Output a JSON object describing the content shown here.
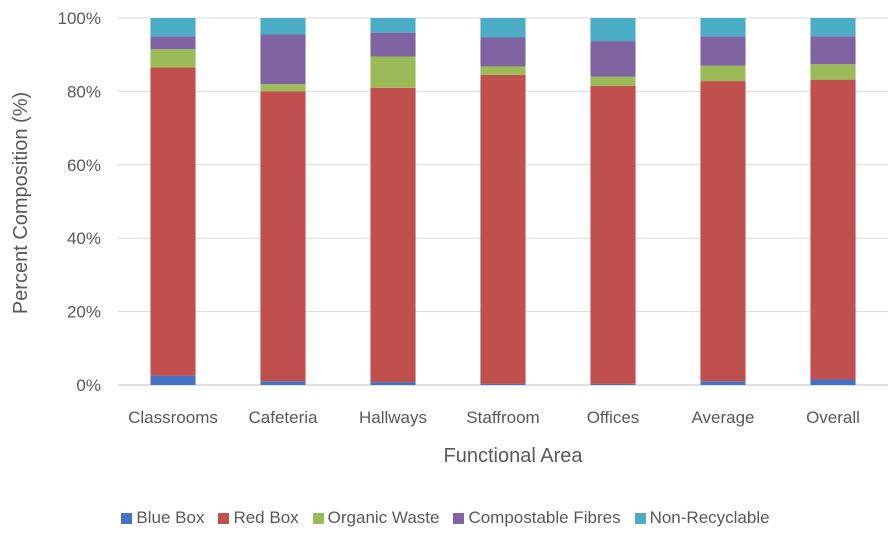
{
  "chart_data": {
    "type": "bar",
    "stacked": true,
    "categories": [
      "Classrooms",
      "Cafeteria",
      "Hallways",
      "Staffroom",
      "Offices",
      "Average",
      "Overall"
    ],
    "series": [
      {
        "name": "Blue Box",
        "color": "#4472C4",
        "values": [
          2.5,
          1.0,
          0.8,
          0.3,
          0.3,
          1.0,
          1.5
        ]
      },
      {
        "name": "Red Box",
        "color": "#C0504D",
        "values": [
          84.0,
          79.0,
          80.2,
          84.2,
          81.2,
          81.8,
          81.7
        ]
      },
      {
        "name": "Organic Waste",
        "color": "#9BBB59",
        "values": [
          5.0,
          2.0,
          8.5,
          2.3,
          2.5,
          4.2,
          4.2
        ]
      },
      {
        "name": "Compostable Fibres",
        "color": "#8064A2",
        "values": [
          3.5,
          13.5,
          6.5,
          8.0,
          9.7,
          8.0,
          7.6
        ]
      },
      {
        "name": "Non-Recyclable",
        "color": "#4BACC6",
        "values": [
          5.0,
          4.5,
          4.0,
          5.2,
          6.3,
          5.0,
          5.0
        ]
      }
    ],
    "y_ticks": [
      "0%",
      "20%",
      "40%",
      "60%",
      "80%",
      "100%"
    ],
    "ylim": [
      0,
      100
    ],
    "xlabel": "Functional Area",
    "ylabel": "Percent Composition (%)",
    "grid": true,
    "legend_position": "bottom"
  }
}
